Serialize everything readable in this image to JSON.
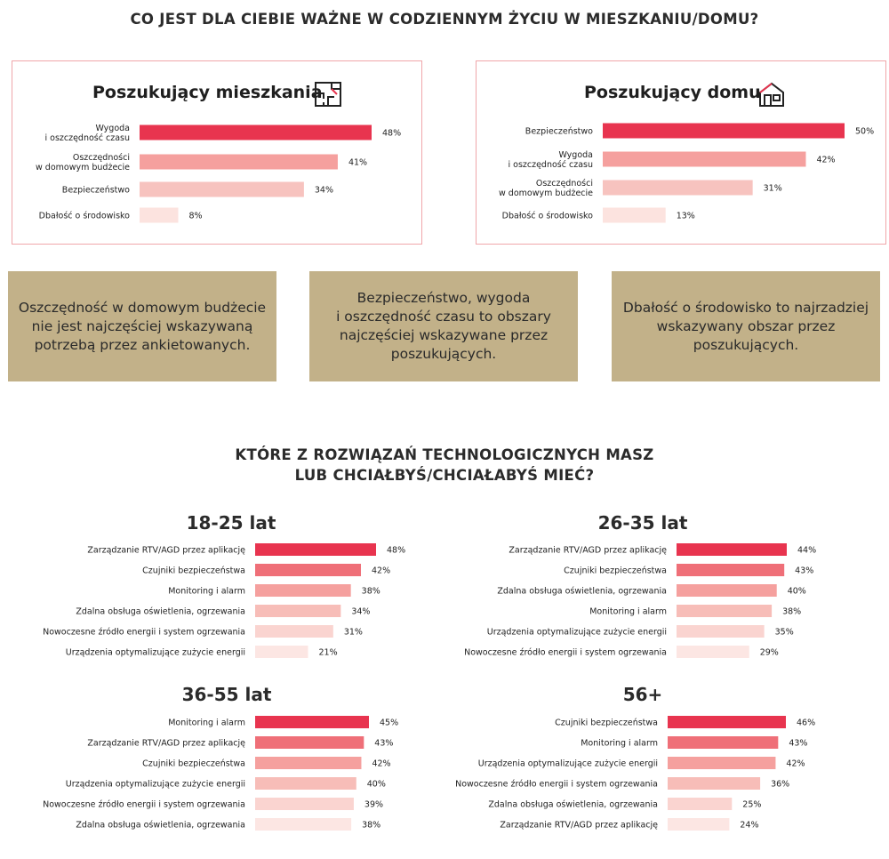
{
  "heading_top": "CO JEST DLA CIEBIE WAŻNE W CODZIENNYM ŻYCIU W MIESZKANIU/DOMU?",
  "heading_tech_line1": "KTÓRE Z ROZWIĄZAŃ TECHNOLOGICZNYCH MASZ",
  "heading_tech_line2": "LUB CHCIAŁBYŚ/CHCIAŁABYŚ MIEĆ?",
  "colors": [
    "#e8344f",
    "#ef6f78",
    "#f5a09e",
    "#f7bdb8",
    "#fad4d0",
    "#fce6e3"
  ],
  "boxes": [
    {
      "lines": [
        "Oszczędność w domowym budżecie",
        "nie jest najczęściej wskazywaną",
        "potrzebą przez ankietowanych."
      ]
    },
    {
      "lines": [
        "Bezpieczeństwo, wygoda",
        "i oszczędność czasu to obszary",
        "najczęściej wskazywane przez",
        "poszukujących."
      ]
    },
    {
      "lines": [
        "Dbałość o środowisko to najrzadziej",
        "wskazywany  obszar przez",
        "poszukujących."
      ]
    }
  ],
  "chart_data": [
    {
      "type": "bar",
      "orientation": "horizontal",
      "title": "Poszukujący mieszkania",
      "icon": "floorplan-icon",
      "categories": [
        [
          "Wygoda",
          "i oszczędność czasu"
        ],
        [
          "Oszczędności",
          "w domowym budżecie"
        ],
        [
          "Bezpieczeństwo"
        ],
        [
          "Dbałość o środowisko"
        ]
      ],
      "values": [
        48,
        41,
        34,
        8
      ],
      "labels": [
        "48%",
        "41%",
        "34%",
        "8%"
      ],
      "unit": "%",
      "colors": [
        "#e8344f",
        "#f5a09e",
        "#f7c3bf",
        "#fce3df"
      ]
    },
    {
      "type": "bar",
      "orientation": "horizontal",
      "title": "Poszukujący domu",
      "icon": "house-icon",
      "categories": [
        [
          "Bezpieczeństwo"
        ],
        [
          "Wygoda",
          "i oszczędność czasu"
        ],
        [
          "Oszczędności",
          "w domowym budżecie"
        ],
        [
          "Dbałość o środowisko"
        ]
      ],
      "values": [
        50,
        42,
        31,
        13
      ],
      "labels": [
        "50%",
        "42%",
        "31%",
        "13%"
      ],
      "unit": "%",
      "colors": [
        "#e8344f",
        "#f5a09e",
        "#f7c3bf",
        "#fce3df"
      ]
    },
    {
      "type": "bar",
      "orientation": "horizontal",
      "title": "18-25 lat",
      "categories": [
        "Zarządzanie RTV/AGD przez aplikację",
        "Czujniki bezpieczeństwa",
        "Monitoring i alarm",
        "Zdalna obsługa oświetlenia, ogrzewania",
        "Nowoczesne źródło energii i system ogrzewania",
        "Urządzenia optymalizujące zużycie energii"
      ],
      "values": [
        48,
        42,
        38,
        34,
        31,
        21
      ],
      "labels": [
        "48%",
        "42%",
        "38%",
        "34%",
        "31%",
        "21%"
      ],
      "unit": "%"
    },
    {
      "type": "bar",
      "orientation": "horizontal",
      "title": "26-35 lat",
      "categories": [
        "Zarządzanie RTV/AGD przez aplikację",
        "Czujniki bezpieczeństwa",
        "Zdalna obsługa oświetlenia, ogrzewania",
        "Monitoring i alarm",
        "Urządzenia optymalizujące zużycie energii",
        "Nowoczesne źródło energii i system ogrzewania"
      ],
      "values": [
        44,
        43,
        40,
        38,
        35,
        29
      ],
      "labels": [
        "44%",
        "43%",
        "40%",
        "38%",
        "35%",
        "29%"
      ],
      "unit": "%"
    },
    {
      "type": "bar",
      "orientation": "horizontal",
      "title": "36-55 lat",
      "categories": [
        "Monitoring i alarm",
        "Zarządzanie RTV/AGD przez aplikację",
        "Czujniki bezpieczeństwa",
        "Urządzenia optymalizujące zużycie energii",
        "Nowoczesne źródło energii i system ogrzewania",
        "Zdalna obsługa oświetlenia, ogrzewania"
      ],
      "values": [
        45,
        43,
        42,
        40,
        39,
        38
      ],
      "labels": [
        "45%",
        "43%",
        "42%",
        "40%",
        "39%",
        "38%"
      ],
      "unit": "%"
    },
    {
      "type": "bar",
      "orientation": "horizontal",
      "title": "56+",
      "categories": [
        "Czujniki bezpieczeństwa",
        "Monitoring i alarm",
        "Urządzenia optymalizujące zużycie energii",
        "Nowoczesne źródło energii i system ogrzewania",
        "Zdalna obsługa oświetlenia, ogrzewania",
        "Zarządzanie RTV/AGD przez aplikację"
      ],
      "values": [
        46,
        43,
        42,
        36,
        25,
        24
      ],
      "labels": [
        "46%",
        "43%",
        "42%",
        "36%",
        "25%",
        "24%"
      ],
      "unit": "%"
    }
  ]
}
